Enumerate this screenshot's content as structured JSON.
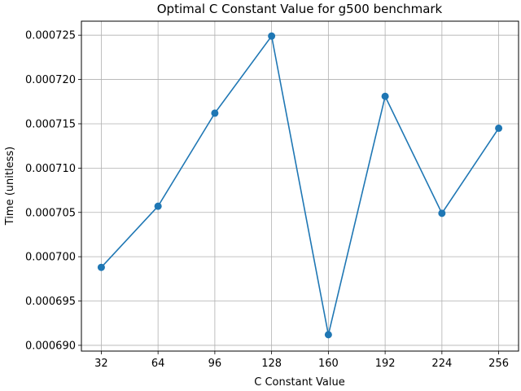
{
  "chart_data": {
    "type": "line",
    "title": "Optimal C Constant Value for g500 benchmark",
    "xlabel": "C Constant Value",
    "ylabel": "Time (unitless)",
    "x": [
      32,
      64,
      96,
      128,
      160,
      192,
      224,
      256
    ],
    "xticks": [
      "32",
      "64",
      "96",
      "128",
      "160",
      "192",
      "224",
      "256"
    ],
    "yticks": [
      "0.000690",
      "0.000695",
      "0.000700",
      "0.000705",
      "0.000710",
      "0.000715",
      "0.000720",
      "0.000725"
    ],
    "ytick_values": [
      0.00069,
      0.000695,
      0.0007,
      0.000705,
      0.00071,
      0.000715,
      0.00072,
      0.000725
    ],
    "series": [
      {
        "values": [
          0.0006988,
          0.0007057,
          0.0007162,
          0.0007249,
          0.0006912,
          0.0007181,
          0.0007049,
          0.0007145
        ],
        "color": "#1f77b4",
        "marker": "circle"
      }
    ],
    "xlim": [
      20.8,
      267.2
    ],
    "ylim": [
      0.00068935,
      0.00072658
    ],
    "grid": true
  }
}
